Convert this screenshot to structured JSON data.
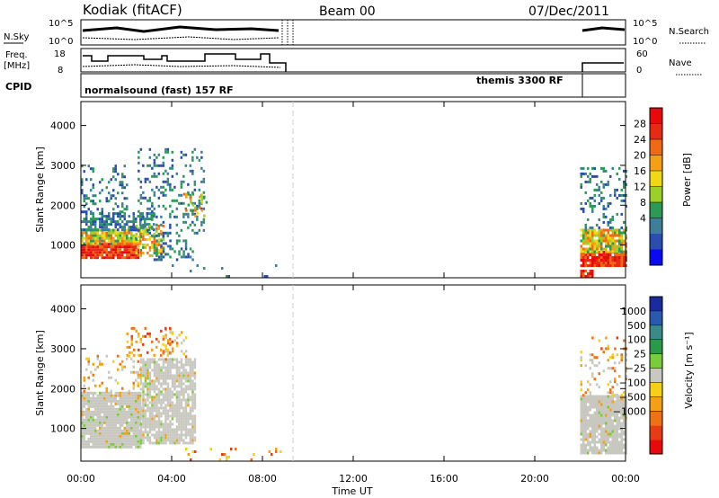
{
  "header": {
    "title": "Kodiak (fitACF)",
    "beam": "Beam 00",
    "date": "07/Dec/2011"
  },
  "params": {
    "nsky_label": "N.Sky",
    "nsearch_label": "N.Search",
    "freq_label": "Freq.",
    "freq_unit": "[MHz]",
    "nave_label": "Nave",
    "cpid_label": "CPID",
    "nsky_ticks": [
      "10^5",
      "10^0"
    ],
    "nsearch_ticks": [
      "10^5",
      "10^0"
    ],
    "freq_ticks": [
      "18",
      "8"
    ],
    "nave_ticks": [
      "60",
      "0"
    ],
    "cpid_left": "normalsound (fast) 157 RF",
    "cpid_right": "themis 3300 RF"
  },
  "colorbars": {
    "power": {
      "label": "Power [dB]",
      "ticks": [
        "28",
        "24",
        "20",
        "16",
        "12",
        "8",
        "4"
      ],
      "colors": [
        "#0a0af0",
        "#2a4db0",
        "#3d7f9a",
        "#2a9a55",
        "#9ad028",
        "#f0d814",
        "#f5a014",
        "#f06a14",
        "#e82a14",
        "#e80a0a"
      ]
    },
    "velocity": {
      "label": "Velocity [m s⁻¹]",
      "ticks": [
        "1000",
        "500",
        "100",
        "25",
        "−25",
        "−100",
        "−500",
        "−1000"
      ],
      "colors": [
        "#1a2aa0",
        "#2a5ab0",
        "#3a8a8a",
        "#2a9a4a",
        "#7acc3a",
        "#c8c8c0",
        "#f5d014",
        "#f5a014",
        "#f07014",
        "#e83a14",
        "#e80a0a"
      ]
    }
  },
  "chart_data": [
    {
      "type": "heatmap",
      "title": "Power",
      "ylabel": "Slant Range [km]",
      "xlabel": "Time UT",
      "x_ticks": [
        "00:00",
        "04:00",
        "08:00",
        "12:00",
        "16:00",
        "20:00",
        "00:00"
      ],
      "y_ticks": [
        "4000",
        "3000",
        "2000",
        "1000"
      ],
      "xlim_hours": [
        0,
        24
      ],
      "ylim_km": [
        180,
        4600
      ],
      "regions": [
        {
          "t": [
            0.0,
            2.4
          ],
          "r": [
            700,
            1000
          ],
          "power": 28
        },
        {
          "t": [
            0.0,
            2.4
          ],
          "r": [
            1000,
            1400
          ],
          "power": 20
        },
        {
          "t": [
            0.0,
            2.4
          ],
          "r": [
            1400,
            2000
          ],
          "power": 12
        },
        {
          "t": [
            2.4,
            3.5
          ],
          "r": [
            700,
            1600
          ],
          "power": 16
        },
        {
          "t": [
            22.0,
            24.0
          ],
          "r": [
            600,
            900
          ],
          "power": 28
        },
        {
          "t": [
            22.0,
            24.0
          ],
          "r": [
            900,
            1400
          ],
          "power": 20
        }
      ]
    },
    {
      "type": "heatmap",
      "title": "Velocity",
      "ylabel": "Slant Range [km]",
      "xlabel": "Time UT",
      "x_ticks": [
        "00:00",
        "04:00",
        "08:00",
        "12:00",
        "16:00",
        "20:00",
        "00:00"
      ],
      "y_ticks": [
        "4000",
        "3000",
        "2000",
        "1000"
      ],
      "xlim_hours": [
        0,
        24
      ],
      "ylim_km": [
        180,
        4600
      ],
      "regions": [
        {
          "t": [
            0.0,
            5.0
          ],
          "r": [
            700,
            2200
          ],
          "velocity": 0
        },
        {
          "t": [
            22.0,
            24.0
          ],
          "r": [
            600,
            1800
          ],
          "velocity": 0
        }
      ]
    }
  ]
}
